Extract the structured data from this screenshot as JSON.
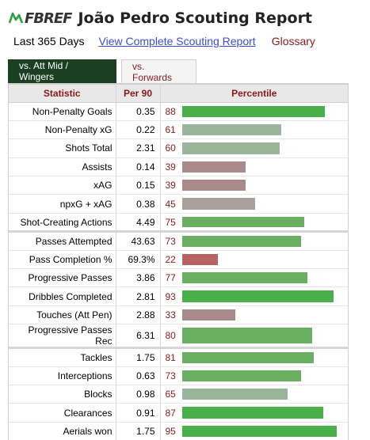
{
  "logo": {
    "mark_icon": "fbref-logo-icon",
    "text": "FBREF"
  },
  "title": "João Pedro Scouting Report",
  "period": "Last 365 Days",
  "complete_link": "View Complete Scouting Report",
  "glossary": "Glossary",
  "tabs": [
    {
      "label": "vs. Att Mid / Wingers",
      "active": true
    },
    {
      "label": "vs. Forwards",
      "active": false
    }
  ],
  "table": {
    "headers": [
      "Statistic",
      "Per 90",
      "Percentile"
    ],
    "groups": [
      [
        {
          "stat": "Non-Penalty Goals",
          "per90": "0.35",
          "pct": 88
        },
        {
          "stat": "Non-Penalty xG",
          "per90": "0.22",
          "pct": 61
        },
        {
          "stat": "Shots Total",
          "per90": "2.31",
          "pct": 60
        },
        {
          "stat": "Assists",
          "per90": "0.14",
          "pct": 39
        },
        {
          "stat": "xAG",
          "per90": "0.15",
          "pct": 39
        },
        {
          "stat": "npxG + xAG",
          "per90": "0.38",
          "pct": 45
        },
        {
          "stat": "Shot-Creating Actions",
          "per90": "4.49",
          "pct": 75
        }
      ],
      [
        {
          "stat": "Passes Attempted",
          "per90": "43.63",
          "pct": 73
        },
        {
          "stat": "Pass Completion %",
          "per90": "69.3%",
          "pct": 22
        },
        {
          "stat": "Progressive Passes",
          "per90": "3.86",
          "pct": 77
        },
        {
          "stat": "Dribbles Completed",
          "per90": "2.81",
          "pct": 93
        },
        {
          "stat": "Touches (Att Pen)",
          "per90": "2.88",
          "pct": 33
        },
        {
          "stat": "Progressive Passes Rec",
          "per90": "6.31",
          "pct": 80
        }
      ],
      [
        {
          "stat": "Tackles",
          "per90": "1.75",
          "pct": 81
        },
        {
          "stat": "Interceptions",
          "per90": "0.63",
          "pct": 73
        },
        {
          "stat": "Blocks",
          "per90": "0.98",
          "pct": 65
        },
        {
          "stat": "Clearances",
          "per90": "0.91",
          "pct": 87
        },
        {
          "stat": "Aerials won",
          "per90": "1.75",
          "pct": 95
        }
      ]
    ]
  },
  "colors": {
    "tab_active": "#1a3f22",
    "accent_red": "#8a1a1a",
    "link_blue": "#3a4ce0",
    "bar_high": "#49b049",
    "bar_mid_high": "#6aaf62",
    "bar_mid": "#9bb59a",
    "bar_mid_low": "#aa9f9f",
    "bar_low_mid": "#a98a8a",
    "bar_low": "#b96262"
  }
}
